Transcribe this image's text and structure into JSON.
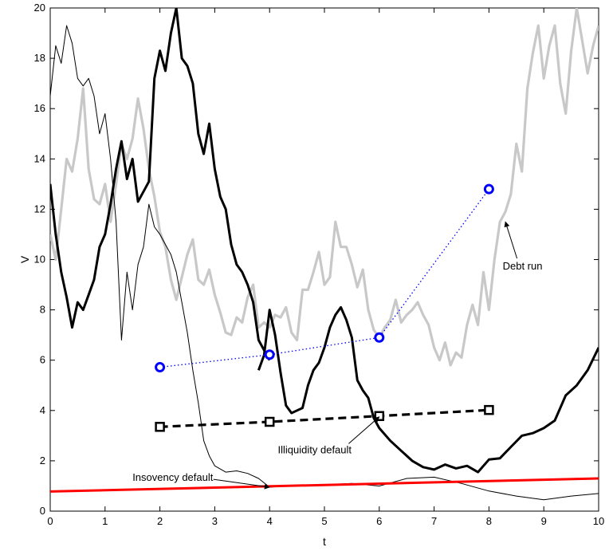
{
  "chart_data": {
    "type": "line",
    "title": "",
    "xlabel": "t",
    "ylabel": "V",
    "xlim": [
      0,
      10
    ],
    "ylim": [
      0,
      20
    ],
    "x_ticks": [
      0,
      1,
      2,
      3,
      4,
      5,
      6,
      7,
      8,
      9,
      10
    ],
    "y_ticks": [
      0,
      2,
      4,
      6,
      8,
      10,
      12,
      14,
      16,
      18,
      20
    ],
    "grid": false,
    "colors": {
      "black": "#000000",
      "gray": "#c8c8c8",
      "red": "#ff0000",
      "blue": "#0000ff"
    },
    "series": [
      {
        "style": "thin-black",
        "x": [
          0,
          0.1,
          0.2,
          0.3,
          0.4,
          0.5,
          0.6,
          0.7,
          0.8,
          0.9,
          1.0,
          1.1,
          1.2,
          1.3,
          1.4,
          1.5,
          1.6,
          1.7,
          1.8,
          1.9,
          2.0,
          2.1,
          2.2,
          2.3,
          2.4,
          2.5,
          2.6,
          2.7,
          2.8,
          2.9,
          3.0,
          3.2,
          3.4,
          3.6,
          3.8,
          4.0,
          4.3,
          4.6,
          5.0,
          5.5,
          6.0,
          6.5,
          7.0,
          7.5,
          8.0,
          8.5,
          9.0,
          9.5,
          10.0
        ],
        "y": [
          16.5,
          18.5,
          17.8,
          19.3,
          18.6,
          17.2,
          16.9,
          17.2,
          16.5,
          15.0,
          15.8,
          14.0,
          11.5,
          6.8,
          9.5,
          8.0,
          9.8,
          10.5,
          12.2,
          11.3,
          11.0,
          10.6,
          10.2,
          9.5,
          8.3,
          7.1,
          5.6,
          4.3,
          2.8,
          2.2,
          1.8,
          1.55,
          1.6,
          1.5,
          1.3,
          0.95,
          1.0,
          1.0,
          1.05,
          1.1,
          1.0,
          1.3,
          1.35,
          1.1,
          0.8,
          0.6,
          0.45,
          0.6,
          0.7
        ]
      },
      {
        "style": "thick-black-1",
        "x": [
          0,
          0.1,
          0.2,
          0.3,
          0.4,
          0.5,
          0.6,
          0.7,
          0.8,
          0.9,
          1.0,
          1.1,
          1.2,
          1.3,
          1.4,
          1.5,
          1.6,
          1.7,
          1.8,
          1.9,
          2.0,
          2.1,
          2.2,
          2.3,
          2.4,
          2.5,
          2.6,
          2.7,
          2.8,
          2.9,
          3.0,
          3.1,
          3.2,
          3.3,
          3.4,
          3.5,
          3.6,
          3.7,
          3.8,
          3.9,
          4.0
        ],
        "y": [
          13.0,
          11.0,
          9.5,
          8.5,
          7.3,
          8.3,
          8.0,
          8.6,
          9.2,
          10.5,
          11.0,
          12.2,
          13.6,
          14.7,
          13.2,
          14.0,
          12.3,
          12.7,
          13.1,
          17.2,
          18.3,
          17.5,
          19.0,
          20.0,
          18.0,
          17.7,
          17.0,
          15.0,
          14.2,
          15.4,
          13.6,
          12.5,
          12.0,
          10.6,
          9.8,
          9.5,
          9.0,
          8.3,
          6.8,
          6.4,
          6.0
        ]
      },
      {
        "style": "thick-black-2",
        "x": [
          3.8,
          3.9,
          4.0,
          4.1,
          4.2,
          4.3,
          4.4,
          4.5,
          4.6,
          4.7,
          4.8,
          4.9,
          5.0,
          5.1,
          5.2,
          5.3,
          5.4,
          5.5,
          5.6,
          5.7,
          5.8,
          5.9,
          6.0,
          6.2,
          6.4,
          6.6,
          6.8,
          7.0,
          7.2,
          7.4,
          7.6,
          7.8,
          8.0,
          8.2,
          8.4,
          8.6,
          8.8,
          9.0,
          9.2,
          9.4,
          9.6,
          9.8,
          10.0
        ],
        "y": [
          5.6,
          6.2,
          8.0,
          7.0,
          5.5,
          4.2,
          3.9,
          4.0,
          4.1,
          5.0,
          5.6,
          5.9,
          6.5,
          7.3,
          7.8,
          8.1,
          7.6,
          6.9,
          5.2,
          4.8,
          4.5,
          3.7,
          3.3,
          2.8,
          2.4,
          2.0,
          1.75,
          1.65,
          1.85,
          1.7,
          1.8,
          1.55,
          2.05,
          2.1,
          2.55,
          3.0,
          3.1,
          3.3,
          3.6,
          4.6,
          5.0,
          5.6,
          6.5
        ]
      },
      {
        "style": "gray",
        "x": [
          0,
          0.1,
          0.2,
          0.3,
          0.4,
          0.5,
          0.6,
          0.7,
          0.8,
          0.9,
          1.0,
          1.1,
          1.2,
          1.3,
          1.4,
          1.5,
          1.6,
          1.7,
          1.8,
          1.9,
          2.0,
          2.1,
          2.2,
          2.3,
          2.4,
          2.5,
          2.6,
          2.7,
          2.8,
          2.9,
          3.0,
          3.1,
          3.2,
          3.3,
          3.4,
          3.5,
          3.6,
          3.7,
          3.8,
          3.9,
          4.0,
          4.1,
          4.2,
          4.3,
          4.4,
          4.5,
          4.6,
          4.7,
          4.8,
          4.9,
          5.0,
          5.1,
          5.2,
          5.3,
          5.4,
          5.5,
          5.6,
          5.7,
          5.8,
          5.9,
          6.0,
          6.1,
          6.2,
          6.3,
          6.4,
          6.5,
          6.6,
          6.7,
          6.8,
          6.9,
          7.0,
          7.1,
          7.2,
          7.3,
          7.4,
          7.5,
          7.6,
          7.7,
          7.8,
          7.9,
          8.0,
          8.1,
          8.2,
          8.3,
          8.4,
          8.5,
          8.6,
          8.7,
          8.8,
          8.9,
          9.0,
          9.1,
          9.2,
          9.3,
          9.4,
          9.5,
          9.6,
          9.7,
          9.8,
          9.9,
          10.0
        ],
        "y": [
          11.0,
          10.0,
          12.0,
          14.0,
          13.5,
          14.8,
          16.8,
          13.6,
          12.4,
          12.2,
          13.0,
          11.5,
          13.0,
          14.6,
          14.0,
          14.8,
          16.4,
          15.2,
          13.6,
          12.5,
          11.1,
          10.5,
          9.2,
          8.4,
          9.3,
          10.2,
          10.8,
          9.2,
          9.0,
          9.6,
          8.6,
          7.9,
          7.1,
          7.0,
          7.7,
          7.5,
          8.5,
          9.0,
          7.3,
          7.5,
          7.3,
          7.8,
          7.7,
          8.1,
          7.1,
          6.8,
          8.8,
          8.8,
          9.5,
          10.3,
          9.0,
          9.3,
          11.5,
          10.5,
          10.5,
          9.8,
          8.9,
          9.6,
          8.0,
          7.2,
          6.9,
          7.3,
          7.6,
          8.4,
          7.5,
          7.8,
          8.0,
          8.3,
          7.8,
          7.4,
          6.5,
          6.0,
          6.7,
          5.8,
          6.3,
          6.1,
          7.4,
          8.2,
          7.4,
          9.5,
          8.0,
          10.0,
          11.5,
          11.9,
          12.6,
          14.6,
          13.5,
          16.8,
          18.2,
          19.3,
          17.2,
          18.5,
          19.3,
          17.0,
          15.8,
          18.3,
          20.0,
          18.7,
          17.4,
          18.5,
          19.3
        ]
      },
      {
        "name": "Insovency default",
        "style": "red-line",
        "x": [
          0,
          10
        ],
        "y": [
          0.78,
          1.3
        ]
      },
      {
        "style": "blue-dotted-markers",
        "x": [
          2,
          4,
          6,
          8
        ],
        "y": [
          5.72,
          6.22,
          6.9,
          12.8
        ]
      },
      {
        "style": "black-dashed-squares",
        "x": [
          2,
          4,
          6,
          8
        ],
        "y": [
          3.35,
          3.55,
          3.78,
          4.02
        ]
      }
    ],
    "annotations": [
      {
        "text": "Debt run",
        "text_x": 8.25,
        "text_y": 9.6,
        "target_x": 8.3,
        "target_y": 11.5
      },
      {
        "text": "Illiquidity default",
        "text_x": 4.15,
        "text_y": 2.3,
        "target_x": 6.0,
        "target_y": 3.75
      },
      {
        "text": "Insovency default",
        "text_x": 1.5,
        "text_y": 1.2,
        "target_x": 4.0,
        "target_y": 0.95
      }
    ]
  }
}
